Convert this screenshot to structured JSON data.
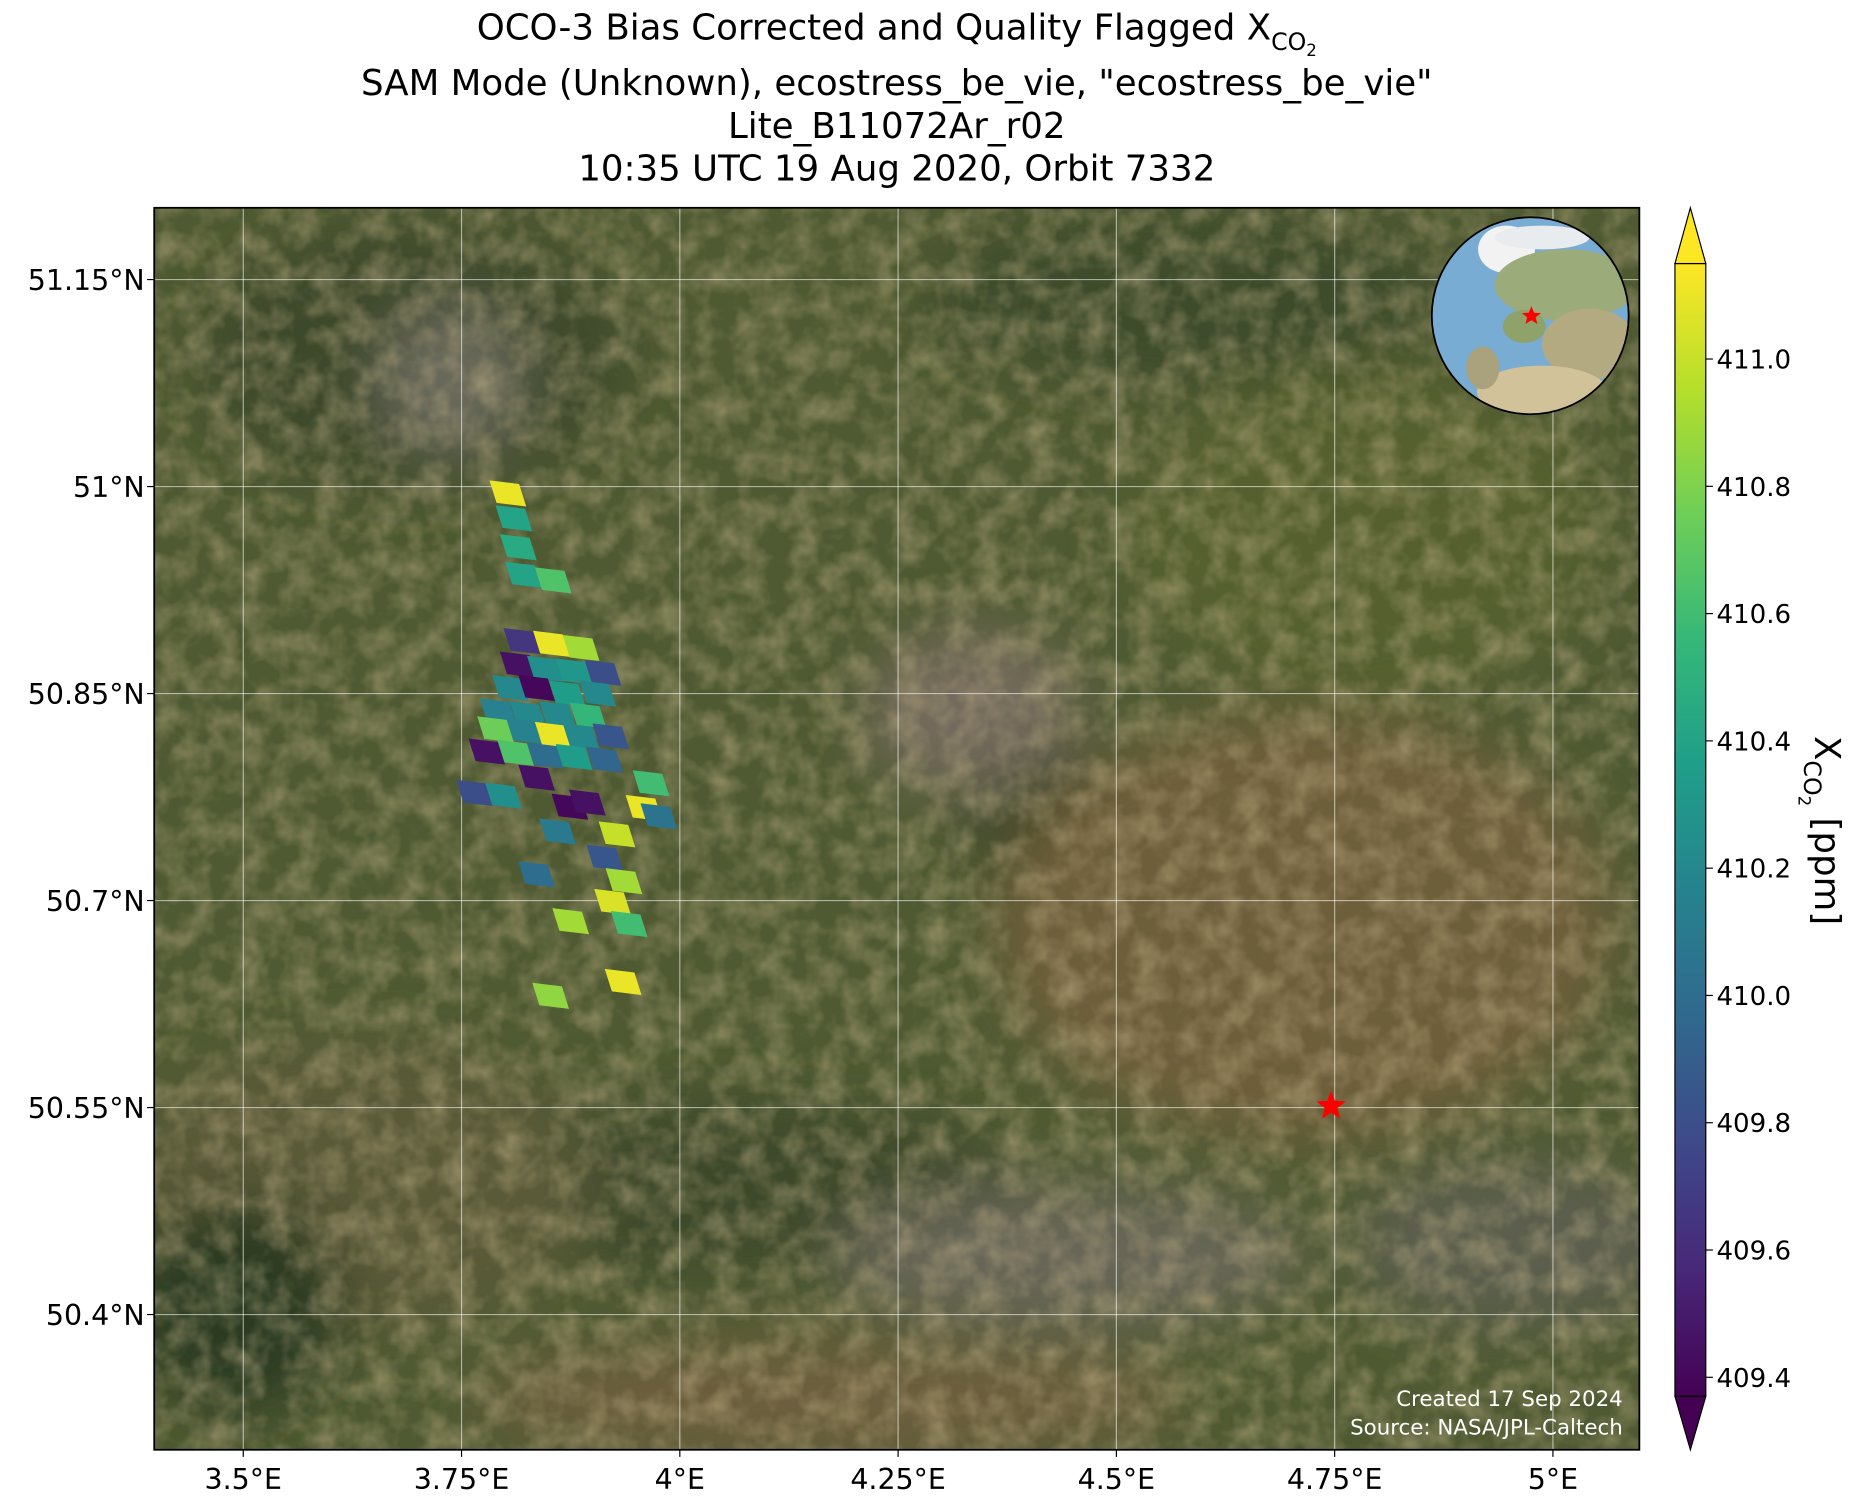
{
  "chart_data": {
    "type": "map",
    "title": [
      "OCO-3 Bias Corrected and Quality Flagged X",
      "SAM Mode (Unknown), ecostress_be_vie, \"ecostress_be_vie\"",
      "Lite_B11072Ar_r02",
      "10:35 UTC 19 Aug 2020, Orbit 7332"
    ],
    "title_subscript": "CO",
    "title_subsubscript": "2",
    "xlim": [
      3.398,
      5.099
    ],
    "ylim": [
      50.302,
      51.202
    ],
    "xticks": [
      {
        "value": 3.5,
        "label": "3.5°E"
      },
      {
        "value": 3.75,
        "label": "3.75°E"
      },
      {
        "value": 4.0,
        "label": "4°E"
      },
      {
        "value": 4.25,
        "label": "4.25°E"
      },
      {
        "value": 4.5,
        "label": "4.5°E"
      },
      {
        "value": 4.75,
        "label": "4.75°E"
      },
      {
        "value": 5.0,
        "label": "5°E"
      }
    ],
    "yticks": [
      {
        "value": 51.15,
        "label": "51.15°N"
      },
      {
        "value": 51.0,
        "label": "51°N"
      },
      {
        "value": 50.85,
        "label": "50.85°N"
      },
      {
        "value": 50.7,
        "label": "50.7°N"
      },
      {
        "value": 50.55,
        "label": "50.55°N"
      },
      {
        "value": 50.4,
        "label": "50.4°N"
      }
    ],
    "grid": true,
    "colormap": "viridis",
    "clim": [
      409.37,
      411.15
    ],
    "cticks": [
      {
        "value": 409.4,
        "label": "409.4"
      },
      {
        "value": 409.6,
        "label": "409.6"
      },
      {
        "value": 409.8,
        "label": "409.8"
      },
      {
        "value": 410.0,
        "label": "410.0"
      },
      {
        "value": 410.2,
        "label": "410.2"
      },
      {
        "value": 410.4,
        "label": "410.4"
      },
      {
        "value": 410.6,
        "label": "410.6"
      },
      {
        "value": 410.8,
        "label": "410.8"
      },
      {
        "value": 411.0,
        "label": "411.0"
      }
    ],
    "colorbar_label": {
      "symbol": "X",
      "subscript": "CO",
      "subsubscript": "2",
      "unit": " [ppm]"
    },
    "lon": [
      3.803,
      3.81,
      3.815,
      3.821,
      3.855,
      3.819,
      3.853,
      3.887,
      3.815,
      3.846,
      3.879,
      3.912,
      3.806,
      3.836,
      3.871,
      3.906,
      3.792,
      3.826,
      3.86,
      3.895,
      3.789,
      3.822,
      3.855,
      3.887,
      3.921,
      3.779,
      3.812,
      3.846,
      3.879,
      3.914,
      3.836,
      3.765,
      3.798,
      3.874,
      3.894,
      3.967,
      3.959,
      3.976,
      3.86,
      3.928,
      3.914,
      3.936,
      3.836,
      3.923,
      3.875,
      3.942,
      3.852,
      3.935
    ],
    "lat": [
      50.995,
      50.977,
      50.956,
      50.936,
      50.932,
      50.888,
      50.886,
      50.883,
      50.871,
      50.868,
      50.866,
      50.865,
      50.854,
      50.854,
      50.85,
      50.85,
      50.837,
      50.835,
      50.835,
      50.834,
      50.824,
      50.823,
      50.82,
      50.819,
      50.819,
      50.808,
      50.807,
      50.805,
      50.804,
      50.802,
      50.789,
      50.778,
      50.776,
      50.768,
      50.771,
      50.785,
      50.767,
      50.761,
      50.75,
      50.748,
      50.731,
      50.714,
      50.719,
      50.699,
      50.685,
      50.683,
      50.631,
      50.641
    ],
    "values": [
      411.1,
      410.4,
      410.45,
      410.4,
      410.65,
      409.65,
      411.1,
      410.9,
      409.45,
      410.25,
      410.3,
      409.8,
      410.2,
      409.4,
      410.35,
      410.2,
      410.15,
      410.2,
      410.2,
      410.55,
      410.75,
      410.15,
      411.1,
      410.2,
      409.85,
      409.45,
      410.65,
      410.0,
      410.35,
      409.95,
      409.45,
      409.8,
      410.25,
      409.4,
      409.45,
      410.6,
      411.1,
      410.05,
      410.1,
      411.0,
      409.85,
      410.9,
      410.0,
      411.05,
      410.9,
      410.6,
      410.85,
      411.1
    ],
    "target": {
      "lon": 4.746,
      "lat": 50.551,
      "color": "#ff0000"
    },
    "annotations": [
      "Created 17 Sep 2024",
      "Source: NASA/JPL-Caltech"
    ]
  }
}
